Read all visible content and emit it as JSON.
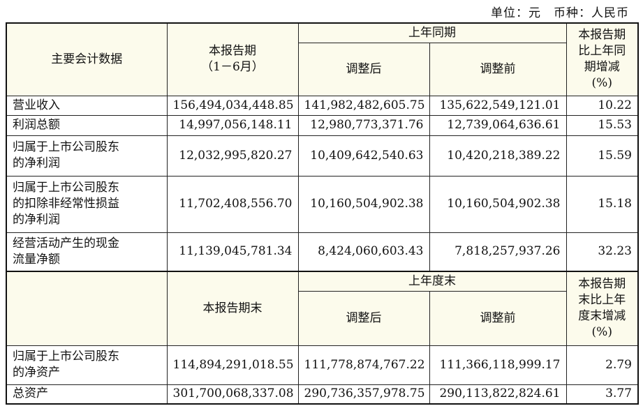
{
  "unit_line": "单位：元　币种：人民币",
  "header1": {
    "col_item": "主要会计数据",
    "col_current_line1": "本报告期",
    "col_current_line2": "（1－6月）",
    "col_prior_group": "上年同期",
    "col_adjusted": "调整后",
    "col_before": "调整前",
    "col_change": [
      "本报告期",
      "比上年同",
      "期增减",
      "(%)"
    ]
  },
  "rows1": [
    {
      "item": [
        "营业收入"
      ],
      "current": "156,494,034,448.85",
      "adjusted": "141,982,482,605.75",
      "before": "135,622,549,121.01",
      "change": "10.22"
    },
    {
      "item": [
        "利润总额"
      ],
      "current": "14,997,056,148.11",
      "adjusted": "12,980,773,371.76",
      "before": "12,739,064,636.61",
      "change": "15.53"
    },
    {
      "item": [
        "归属于上市公司股东",
        "的净利润"
      ],
      "current": "12,032,995,820.27",
      "adjusted": "10,409,642,540.63",
      "before": "10,420,218,389.22",
      "change": "15.59"
    },
    {
      "item": [
        "归属于上市公司股东",
        "的扣除非经常性损益",
        "的净利润"
      ],
      "current": "11,702,408,556.70",
      "adjusted": "10,160,504,902.38",
      "before": "10,160,504,902.38",
      "change": "15.18"
    },
    {
      "item": [
        "经营活动产生的现金",
        "流量净额"
      ],
      "current": "11,139,045,781.34",
      "adjusted": "8,424,060,603.43",
      "before": "7,818,257,937.26",
      "change": "32.23"
    }
  ],
  "header2": {
    "col_current": "本报告期末",
    "col_prior_group": "上年度末",
    "col_adjusted": "调整后",
    "col_before": "调整前",
    "col_change": [
      "本报告期",
      "末比上年",
      "度末增减",
      "(%)"
    ]
  },
  "rows2": [
    {
      "item": [
        "归属于上市公司股东",
        "的净资产"
      ],
      "current": "114,894,291,018.55",
      "adjusted": "111,778,874,767.22",
      "before": "111,366,118,999.17",
      "change": "2.79"
    },
    {
      "item": [
        "总资产"
      ],
      "current": "301,700,068,337.08",
      "adjusted": "290,736,357,978.75",
      "before": "290,113,822,824.61",
      "change": "3.77"
    }
  ]
}
